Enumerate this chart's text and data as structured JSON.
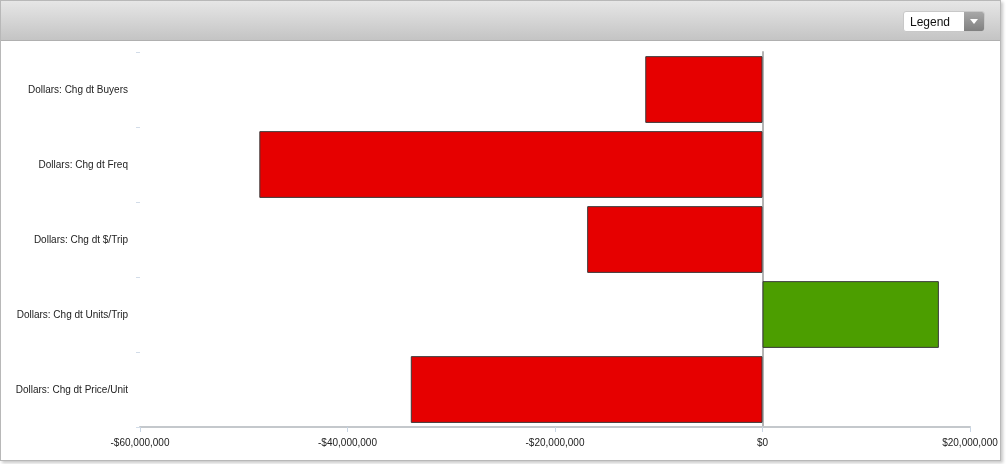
{
  "chart_data": {
    "type": "bar",
    "orientation": "horizontal",
    "categories": [
      "Dollars: Chg dt Buyers",
      "Dollars: Chg dt Freq",
      "Dollars: Chg dt $/Trip",
      "Dollars: Chg dt Units/Trip",
      "Dollars: Chg dt Price/Unit"
    ],
    "values": [
      -11300000,
      -48500000,
      -16900000,
      17000000,
      -33900000
    ],
    "colors": [
      "#e60000",
      "#e60000",
      "#e60000",
      "#4c9e00",
      "#e60000"
    ],
    "xlim": [
      -60000000,
      20000000
    ],
    "xticks": [
      {
        "value": -60000000,
        "label": "-$60,000,000"
      },
      {
        "value": -40000000,
        "label": "-$40,000,000"
      },
      {
        "value": -20000000,
        "label": "-$20,000,000"
      },
      {
        "value": 0,
        "label": "$0"
      },
      {
        "value": 20000000,
        "label": "$20,000,000"
      }
    ],
    "annotations": [
      "Legend"
    ]
  }
}
